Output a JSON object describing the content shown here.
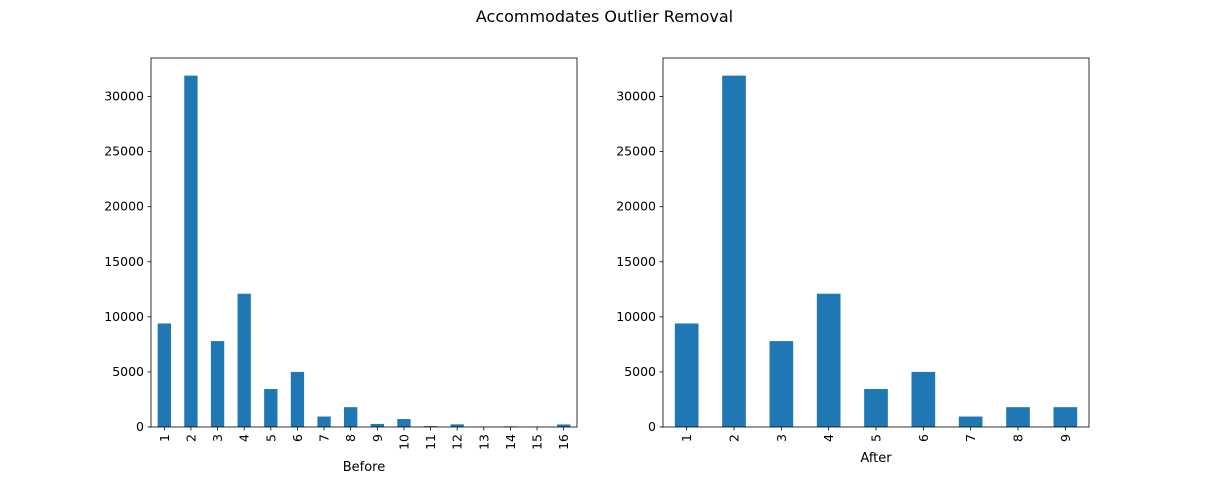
{
  "figure": {
    "title": "Accommodates Outlier Removal"
  },
  "chart_data": [
    {
      "type": "bar",
      "xlabel": "Before",
      "ylabel": "",
      "ylim": [
        0,
        33500
      ],
      "yticks": [
        "0",
        "5000",
        "10000",
        "15000",
        "20000",
        "25000",
        "30000"
      ],
      "categories": [
        "1",
        "2",
        "3",
        "4",
        "5",
        "6",
        "7",
        "8",
        "9",
        "10",
        "11",
        "12",
        "13",
        "14",
        "15",
        "16"
      ],
      "values": [
        9400,
        31900,
        7800,
        12100,
        3450,
        5000,
        950,
        1800,
        280,
        720,
        80,
        240,
        20,
        60,
        15,
        230
      ],
      "color": "#1f77b4",
      "grid": false
    },
    {
      "type": "bar",
      "xlabel": "After",
      "ylabel": "",
      "ylim": [
        0,
        33500
      ],
      "yticks": [
        "0",
        "5000",
        "10000",
        "15000",
        "20000",
        "25000",
        "30000"
      ],
      "categories": [
        "1",
        "2",
        "3",
        "4",
        "5",
        "6",
        "7",
        "8",
        "9"
      ],
      "values": [
        9400,
        31900,
        7800,
        12100,
        3450,
        5000,
        950,
        1800,
        1800
      ],
      "color": "#1f77b4",
      "grid": false
    }
  ]
}
